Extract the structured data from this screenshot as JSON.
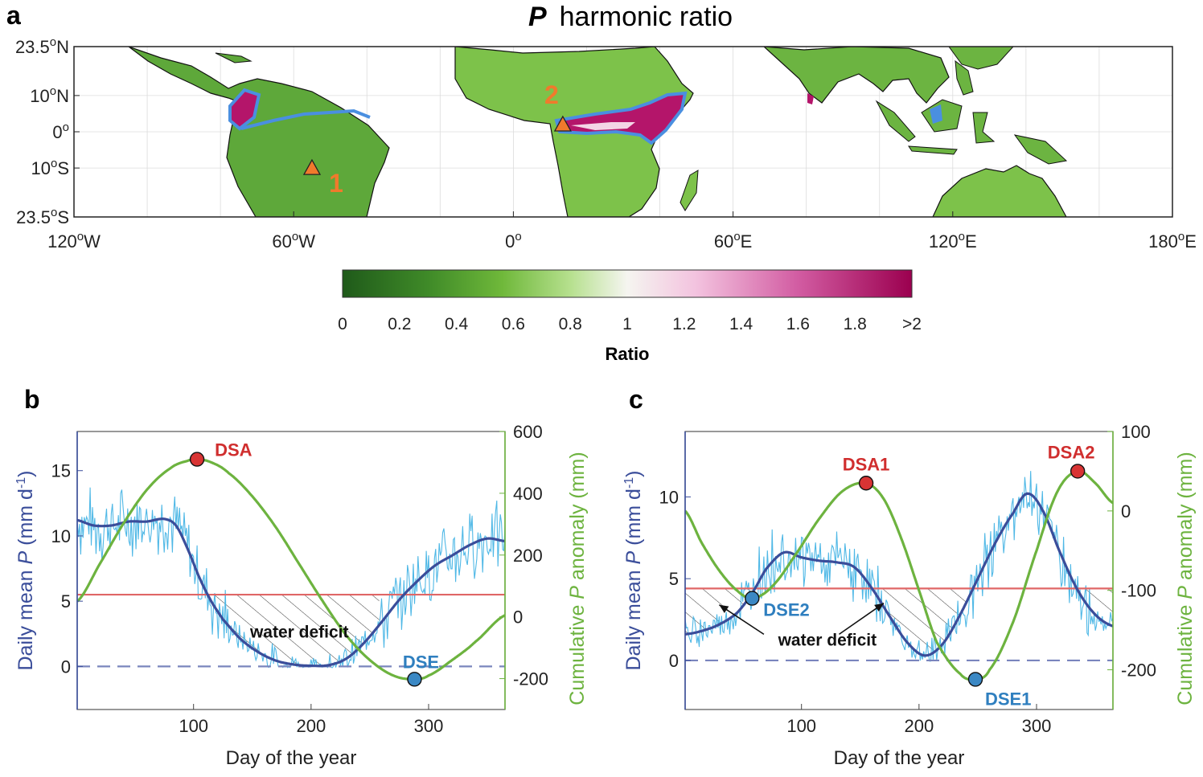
{
  "panels": {
    "a": {
      "letter": "a",
      "title_symbol": "P",
      "title_rest": "harmonic ratio",
      "lat_ticks": [
        "23.5",
        "10",
        "0",
        "10",
        "23.5"
      ],
      "lat_suffix": [
        "N",
        "N",
        "",
        "S",
        "S"
      ],
      "lon_ticks": [
        "120",
        "60",
        "0",
        "60",
        "120",
        "180"
      ],
      "lon_suffix": [
        "W",
        "W",
        "",
        "E",
        "E",
        "E"
      ],
      "degree": "o",
      "sites": [
        {
          "label": "1",
          "lon": -55,
          "lat": -10
        },
        {
          "label": "2",
          "lon": 13.5,
          "lat": 2
        }
      ],
      "colorbar": {
        "ticks": [
          "0",
          "0.2",
          "0.4",
          "0.6",
          "0.8",
          "1",
          "1.2",
          "1.4",
          "1.6",
          "1.8",
          ">2"
        ],
        "label": "Ratio",
        "range": [
          0,
          2
        ]
      }
    },
    "b": {
      "letter": "b"
    },
    "c": {
      "letter": "c"
    }
  },
  "colors": {
    "daily": "#4fb8e6",
    "smooth": "#3a4d9a",
    "cumulative": "#6db33f",
    "threshold": "#e06666",
    "zero_line": "#7a85bd",
    "dsa": "#d93434",
    "dse": "#3b88c4",
    "annot_red": "#d02e2e",
    "annot_blue": "#2f7fbf",
    "site_marker": "#f07a2c",
    "land_mid": "#5ea83a",
    "wet_contour": "#4a8fe0"
  },
  "chart_data": [
    {
      "panel": "b",
      "type": "line",
      "xlabel": "Day of the year",
      "ylabel_left": {
        "pre": "Daily mean ",
        "sym": "P",
        "mid": " (mm d",
        "sup": "-1",
        "post": ")"
      },
      "ylabel_right": {
        "pre": "Cumulative ",
        "sym": "P",
        "post": " anomaly (mm)"
      },
      "xlim": [
        1,
        365
      ],
      "ylim_left": [
        -3.3,
        18
      ],
      "ylim_right": [
        -300,
        600
      ],
      "x_ticks": [
        "100",
        "200",
        "300"
      ],
      "x_tick_values": [
        100,
        200,
        300
      ],
      "y_left_ticks": [
        "0",
        "5",
        "10",
        "15"
      ],
      "y_left_tick_values": [
        0,
        5,
        10,
        15
      ],
      "y_right_ticks": [
        "-200",
        "0",
        "200",
        "400",
        "600"
      ],
      "y_right_tick_values": [
        -200,
        0,
        200,
        400,
        600
      ],
      "threshold": 5.5,
      "smooth": {
        "x": [
          1,
          15,
          30,
          45,
          60,
          75,
          85,
          95,
          105,
          115,
          125,
          140,
          155,
          170,
          185,
          200,
          215,
          230,
          245,
          260,
          275,
          290,
          305,
          320,
          335,
          350,
          365
        ],
        "y": [
          11.2,
          10.8,
          10.8,
          11.1,
          11.1,
          11.3,
          10.8,
          9.0,
          6.8,
          5.0,
          3.6,
          2.1,
          1.1,
          0.45,
          0.15,
          0.05,
          0.1,
          0.6,
          1.8,
          3.4,
          5.1,
          6.5,
          7.7,
          8.5,
          9.3,
          9.8,
          9.6
        ]
      },
      "cumulative": {
        "x": [
          1,
          20,
          40,
          60,
          80,
          95,
          103,
          115,
          130,
          150,
          170,
          190,
          210,
          230,
          250,
          270,
          288,
          300,
          320,
          340,
          365
        ],
        "y": [
          50,
          170,
          300,
          410,
          480,
          505,
          510,
          500,
          465,
          390,
          290,
          170,
          50,
          -60,
          -140,
          -190,
          -202,
          -190,
          -140,
          -80,
          5
        ]
      },
      "noise_amplitude": [
        2.2,
        1.6
      ],
      "deficit_x": [
        108,
        258
      ],
      "deficit_label": "water deficit",
      "deficit_label_pos": [
        190,
        2.2
      ],
      "deficit_arrows": [],
      "markers": [
        {
          "label": "DSA",
          "x": 103,
          "y_right": 510,
          "kind": "dsa",
          "label_dx": 22,
          "label_dy": -12,
          "anchor": "start"
        },
        {
          "label": "DSE",
          "x": 288,
          "y_right": -202,
          "kind": "dse",
          "label_dx": 8,
          "label_dy": -22,
          "anchor": "middle"
        }
      ]
    },
    {
      "panel": "c",
      "type": "line",
      "xlabel": "Day of the year",
      "ylabel_left": {
        "pre": "Daily mean ",
        "sym": "P",
        "mid": " (mm d",
        "sup": "-1",
        "post": ")"
      },
      "ylabel_right": {
        "pre": "Cumulative ",
        "sym": "P",
        "post": " anomaly (mm)"
      },
      "xlim": [
        1,
        365
      ],
      "ylim_left": [
        -3,
        14
      ],
      "ylim_right": [
        -250,
        100
      ],
      "x_ticks": [
        "100",
        "200",
        "300"
      ],
      "x_tick_values": [
        100,
        200,
        300
      ],
      "y_left_ticks": [
        "0",
        "5",
        "10"
      ],
      "y_left_tick_values": [
        0,
        5,
        10
      ],
      "y_right_ticks": [
        "-200",
        "-100",
        "0",
        "100"
      ],
      "y_right_tick_values": [
        -200,
        -100,
        0,
        100
      ],
      "threshold": 4.4,
      "smooth": {
        "x": [
          1,
          15,
          30,
          45,
          58,
          70,
          85,
          100,
          115,
          130,
          145,
          160,
          175,
          190,
          205,
          220,
          235,
          250,
          265,
          280,
          292,
          305,
          320,
          335,
          350,
          365
        ],
        "y": [
          1.6,
          1.8,
          2.2,
          2.9,
          4.1,
          5.6,
          6.6,
          6.3,
          6.1,
          6.0,
          5.7,
          4.4,
          2.7,
          1.1,
          0.3,
          1.0,
          2.8,
          5.0,
          7.2,
          9.0,
          10.2,
          9.2,
          6.6,
          4.3,
          2.8,
          2.1
        ]
      },
      "cumulative": {
        "x": [
          1,
          15,
          30,
          45,
          58,
          75,
          95,
          115,
          135,
          155,
          170,
          185,
          200,
          215,
          235,
          248,
          260,
          280,
          300,
          318,
          335,
          350,
          365
        ],
        "y": [
          0,
          -40,
          -75,
          -100,
          -110,
          -95,
          -55,
          -10,
          25,
          35,
          15,
          -35,
          -100,
          -165,
          -205,
          -212,
          -200,
          -140,
          -50,
          25,
          50,
          35,
          10
        ]
      },
      "noise_amplitude": [
        1.5,
        1.5
      ],
      "deficit_x": [
        1,
        58,
        152,
        248,
        330,
        365
      ],
      "deficit_label": "water deficit",
      "deficit_label_pos": [
        122,
        0.9
      ],
      "deficit_arrows": [
        {
          "from": [
            68,
            1.6
          ],
          "to": [
            30,
            3.4
          ]
        },
        {
          "from": [
            132,
            1.6
          ],
          "to": [
            170,
            3.5
          ]
        }
      ],
      "markers": [
        {
          "label": "DSE2",
          "x": 58,
          "y_right": -110,
          "kind": "dse",
          "label_dx": 14,
          "label_dy": 14,
          "anchor": "start"
        },
        {
          "label": "DSA1",
          "x": 155,
          "y_right": 35,
          "kind": "dsa",
          "label_dx": 0,
          "label_dy": -24,
          "anchor": "middle"
        },
        {
          "label": "DSE1",
          "x": 248,
          "y_right": -212,
          "kind": "dse",
          "label_dx": 12,
          "label_dy": 24,
          "anchor": "start"
        },
        {
          "label": "DSA2",
          "x": 335,
          "y_right": 50,
          "kind": "dsa",
          "label_dx": -8,
          "label_dy": -24,
          "anchor": "middle"
        }
      ]
    }
  ]
}
